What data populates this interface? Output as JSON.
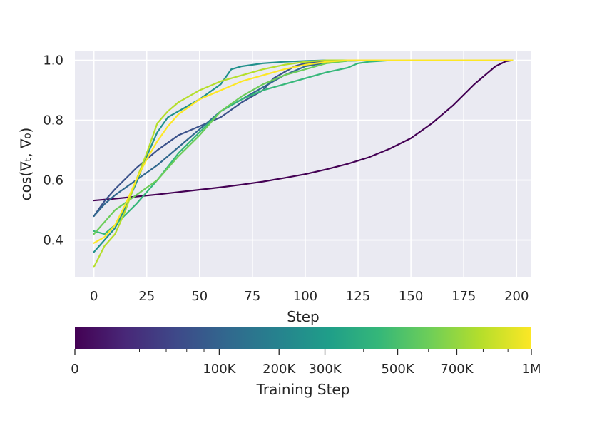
{
  "chart_data": {
    "type": "line",
    "xlabel": "Step",
    "ylabel": "cos(∇ₜ, ∇₀)",
    "xlim": [
      -9,
      207
    ],
    "ylim": [
      0.275,
      1.03
    ],
    "xticks": [
      0,
      25,
      50,
      75,
      100,
      125,
      150,
      175,
      200
    ],
    "yticks": [
      0.4,
      0.6,
      0.8,
      1.0
    ],
    "xtick_labels": [
      "0",
      "25",
      "50",
      "75",
      "100",
      "125",
      "150",
      "175",
      "200"
    ],
    "ytick_labels": [
      "0.4",
      "0.6",
      "0.8",
      "1.0"
    ],
    "grid": true,
    "series": [
      {
        "name": "0",
        "color": "#440154",
        "x": [
          0,
          10,
          20,
          30,
          40,
          50,
          60,
          70,
          80,
          90,
          100,
          110,
          120,
          130,
          140,
          150,
          160,
          170,
          180,
          190,
          195,
          198
        ],
        "y": [
          0.532,
          0.538,
          0.545,
          0.552,
          0.56,
          0.568,
          0.576,
          0.585,
          0.595,
          0.607,
          0.62,
          0.636,
          0.654,
          0.676,
          0.705,
          0.74,
          0.79,
          0.85,
          0.92,
          0.98,
          0.997,
          1.0
        ]
      },
      {
        "name": "100K",
        "color": "#3b528b",
        "x": [
          0,
          5,
          10,
          20,
          30,
          40,
          50,
          60,
          70,
          80,
          85,
          90,
          95,
          100,
          110,
          120,
          130,
          198
        ],
        "y": [
          0.48,
          0.53,
          0.57,
          0.64,
          0.7,
          0.75,
          0.78,
          0.81,
          0.86,
          0.9,
          0.94,
          0.96,
          0.98,
          0.99,
          0.997,
          0.999,
          1.0,
          1.0
        ]
      },
      {
        "name": "200K",
        "color": "#31688e",
        "x": [
          0,
          5,
          10,
          20,
          30,
          40,
          50,
          60,
          70,
          80,
          90,
          100,
          110,
          120,
          130,
          198
        ],
        "y": [
          0.48,
          0.52,
          0.55,
          0.6,
          0.65,
          0.71,
          0.77,
          0.83,
          0.87,
          0.91,
          0.95,
          0.98,
          0.992,
          0.998,
          1.0,
          1.0
        ]
      },
      {
        "name": "300K",
        "color": "#21918c",
        "x": [
          0,
          5,
          10,
          15,
          20,
          25,
          30,
          35,
          40,
          50,
          60,
          65,
          70,
          80,
          90,
          100,
          110,
          120,
          130,
          198
        ],
        "y": [
          0.36,
          0.4,
          0.44,
          0.51,
          0.59,
          0.68,
          0.76,
          0.81,
          0.83,
          0.87,
          0.92,
          0.97,
          0.98,
          0.99,
          0.995,
          0.998,
          1.0,
          1.0,
          1.0,
          1.0
        ]
      },
      {
        "name": "500K",
        "color": "#35b779",
        "x": [
          0,
          5,
          10,
          20,
          30,
          40,
          50,
          60,
          70,
          80,
          90,
          100,
          110,
          120,
          125,
          130,
          140,
          198
        ],
        "y": [
          0.43,
          0.42,
          0.45,
          0.52,
          0.6,
          0.69,
          0.76,
          0.83,
          0.87,
          0.9,
          0.92,
          0.94,
          0.96,
          0.975,
          0.99,
          0.995,
          1.0,
          1.0
        ]
      },
      {
        "name": "600K",
        "color": "#6ccd5a",
        "x": [
          0,
          5,
          10,
          20,
          30,
          40,
          50,
          60,
          70,
          80,
          90,
          100,
          110,
          120,
          130,
          198
        ],
        "y": [
          0.42,
          0.46,
          0.5,
          0.55,
          0.6,
          0.68,
          0.75,
          0.83,
          0.88,
          0.92,
          0.95,
          0.97,
          0.99,
          0.998,
          1.0,
          1.0
        ]
      },
      {
        "name": "700K",
        "color": "#b5de2b",
        "x": [
          0,
          5,
          10,
          15,
          20,
          25,
          30,
          35,
          40,
          50,
          60,
          70,
          80,
          90,
          100,
          110,
          120,
          198
        ],
        "y": [
          0.31,
          0.38,
          0.42,
          0.5,
          0.6,
          0.69,
          0.79,
          0.83,
          0.86,
          0.9,
          0.93,
          0.95,
          0.97,
          0.985,
          0.995,
          1.0,
          1.0,
          1.0
        ]
      },
      {
        "name": "1M",
        "color": "#fde725",
        "x": [
          0,
          5,
          10,
          15,
          20,
          25,
          30,
          35,
          40,
          50,
          60,
          70,
          80,
          90,
          100,
          110,
          120,
          198
        ],
        "y": [
          0.39,
          0.41,
          0.45,
          0.52,
          0.6,
          0.67,
          0.73,
          0.78,
          0.82,
          0.87,
          0.9,
          0.93,
          0.95,
          0.97,
          0.985,
          0.995,
          1.0,
          1.0
        ]
      }
    ],
    "colorbar": {
      "label": "Training Step",
      "tick_labels": [
        "0",
        "100K",
        "200K",
        "300K",
        "500K",
        "700K",
        "1M"
      ],
      "tick_values": [
        0,
        100000,
        200000,
        300000,
        500000,
        700000,
        1000000
      ],
      "minor_tick_values": [
        20000,
        40000,
        60000,
        80000,
        400000,
        600000,
        800000,
        900000
      ],
      "colors": [
        "#440154",
        "#482878",
        "#3e4989",
        "#31688e",
        "#26828e",
        "#1f9e89",
        "#35b779",
        "#6ece58",
        "#b5de2b",
        "#fde725"
      ]
    }
  }
}
